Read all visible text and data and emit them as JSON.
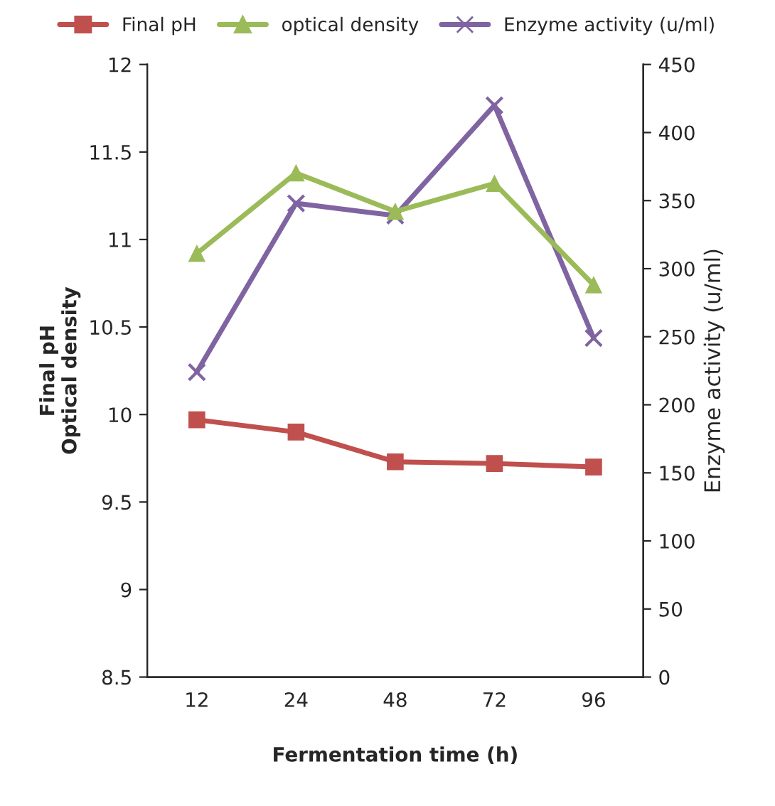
{
  "chart_data": {
    "type": "line",
    "xlabel": "Fermentation time (h)",
    "ylabel": "Final pH\nOptical density",
    "y2label": "Enzyme activity (u/ml)",
    "categories": [
      "12",
      "24",
      "48",
      "72",
      "96"
    ],
    "series": [
      {
        "name": "Final pH",
        "color": "#c0504d",
        "marker": "square",
        "values": [
          9.97,
          9.9,
          9.73,
          9.72,
          9.7
        ]
      },
      {
        "name": "optical density",
        "color": "#9bbb59",
        "marker": "triangle",
        "values": [
          10.92,
          11.38,
          11.16,
          11.32,
          10.74
        ]
      },
      {
        "name": "Enzyme activity (u/ml)",
        "color": "#8064a2",
        "marker": "cross",
        "axis": "y2",
        "values": [
          224,
          348,
          339,
          420,
          249
        ]
      }
    ],
    "ylim": [
      8.5,
      12
    ],
    "yticks": [
      8.5,
      9,
      9.5,
      10,
      10.5,
      11,
      11.5,
      12
    ],
    "y2lim": [
      0,
      450
    ],
    "y2ticks": [
      0,
      50,
      100,
      150,
      200,
      250,
      300,
      350,
      400,
      450
    ],
    "grid": false,
    "legend": "top",
    "line_style": "solid"
  }
}
